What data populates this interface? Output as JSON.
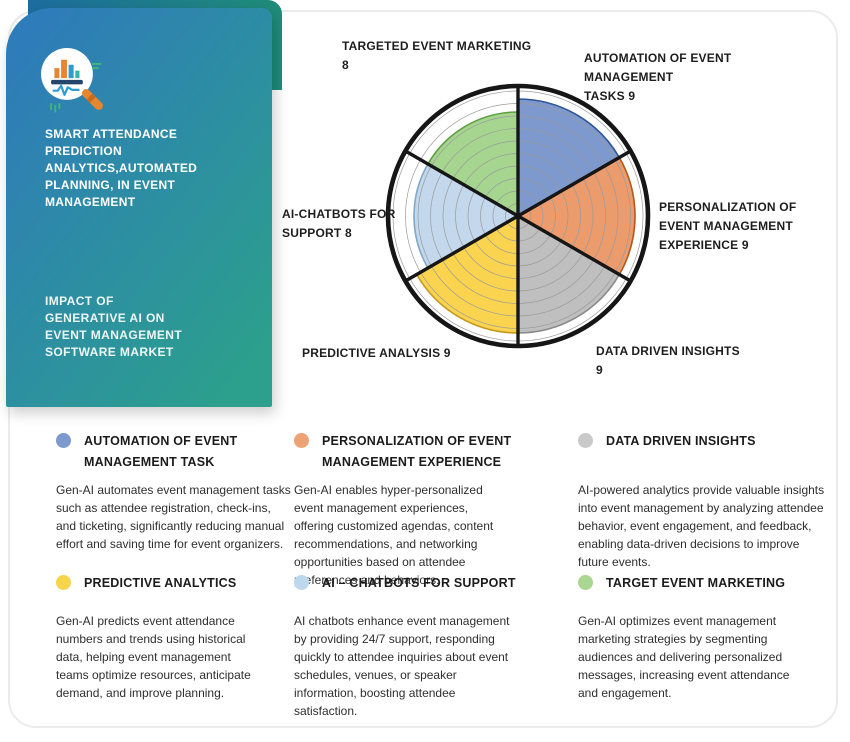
{
  "brand_card": {
    "icon": "analytics-search-icon",
    "heading": "SMART ATTENDANCE\nPREDICTION\nANALYTICS,AUTOMATED\nPLANNING, IN EVENT\nMANAGEMENT",
    "subheading": "IMPACT OF\nGENERATIVE AI ON\nEVENT MANAGEMENT\nSOFTWARE MARKET",
    "gradient_start": "#2E7CB9",
    "gradient_end": "#2CA08C"
  },
  "chart_data": {
    "type": "polar_area",
    "title": "Impact of Generative AI on Event Management Software Market",
    "max": 10,
    "grid_rings": 10,
    "legend_position": "bottom",
    "categories": [
      "Automation of Event Management Tasks",
      "Personalization of Event Management Experience",
      "Data Driven Insights",
      "Predictive Analysis",
      "AI-Chatbots for Support",
      "Targeted Event Marketing"
    ],
    "values": [
      9,
      9,
      9,
      9,
      8,
      8
    ],
    "colors": [
      "#7D99CE",
      "#EC9B6D",
      "#BFBFBF",
      "#FBD44F",
      "#C3D8EC",
      "#A5D58F"
    ],
    "stroke_colors": [
      "#2F5597",
      "#AE5A1E",
      "#8A8A8A",
      "#C49A1E",
      "#7FA8CC",
      "#5F9E43"
    ],
    "outline_color": "#161616",
    "labels": {
      "automation": "AUTOMATION OF EVENT MANAGEMENT\nTASKS 9",
      "personalization": "PERSONALIZATION OF\nEVENT MANAGEMENT\nEXPERIENCE  9",
      "data_driven": "DATA DRIVEN INSIGHTS\n9",
      "predictive": "PREDICTIVE ANALYSIS 9",
      "chatbots": "AI-CHATBOTS FOR\nSUPPORT 8",
      "targeted": "TARGETED EVENT MARKETING\n8"
    }
  },
  "legend": {
    "items": [
      {
        "title": "AUTOMATION OF EVENT\nMANAGEMENT TASK",
        "color": "#7D99CE",
        "description": "Gen-AI automates event management tasks\nsuch as attendee registration, check-ins,\nand ticketing, significantly reducing manual\neffort and saving time for event organizers."
      },
      {
        "title": "PERSONALIZATION OF EVENT\nMANAGEMENT EXPERIENCE",
        "color": "#EDA275",
        "description": "Gen-AI enables hyper-personalized\nevent management experiences,\noffering customized agendas, content\nrecommendations, and networking\nopportunities based on attendee\npreferences and behaviors."
      },
      {
        "title": "DATA DRIVEN INSIGHTS",
        "color": "#C9C9C9",
        "description": "AI-powered analytics provide valuable insights\ninto event management by analyzing attendee\nbehavior, event engagement, and feedback,\nenabling data-driven decisions to improve\nfuture events."
      },
      {
        "title": "PREDICTIVE ANALYTICS",
        "color": "#F6D44C",
        "description": "Gen-AI predicts event attendance\nnumbers and trends using historical\ndata, helping event management\nteams optimize resources, anticipate\ndemand, and improve planning."
      },
      {
        "title": "AI – CHATBOTS FOR SUPPORT",
        "color": "#BDD7EC",
        "description": "AI chatbots enhance event management\nby providing 24/7 support, responding\nquickly to attendee inquiries about event\nschedules, venues, or speaker\ninformation, boosting attendee\nsatisfaction."
      },
      {
        "title": "TARGET EVENT MARKETING",
        "color": "#A9D690",
        "description": "Gen-AI optimizes event management\nmarketing strategies by segmenting\naudiences and delivering personalized\nmessages, increasing event attendance\nand engagement."
      }
    ]
  }
}
